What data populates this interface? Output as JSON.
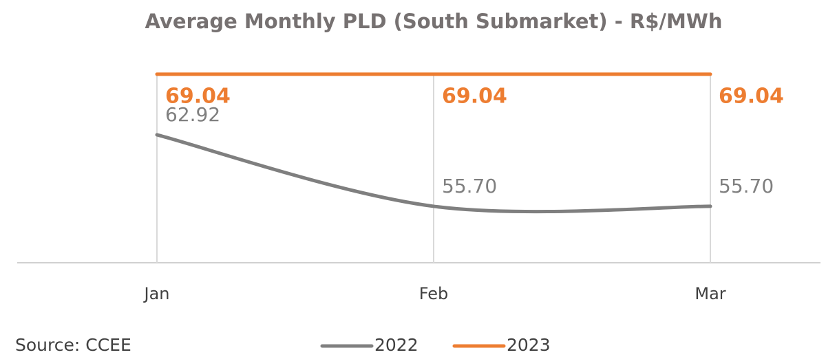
{
  "chart_data": {
    "type": "line",
    "title": "Average Monthly PLD (South Submarket) - R$/MWh",
    "source": "Source: CCEE",
    "categories": [
      "Jan",
      "Feb",
      "Mar"
    ],
    "series": [
      {
        "name": "2022",
        "color": "#7f7f7f",
        "values": [
          62.92,
          55.7,
          55.7
        ],
        "value_labels": [
          "62.92",
          "55.70",
          "55.70"
        ]
      },
      {
        "name": "2023",
        "color": "#ed7d31",
        "values": [
          69.04,
          69.04,
          69.04
        ],
        "value_labels": [
          "69.04",
          "69.04",
          "69.04"
        ]
      }
    ],
    "ylim": [
      50,
      70
    ],
    "smooth": true,
    "grid": true,
    "legend": "bottom"
  }
}
